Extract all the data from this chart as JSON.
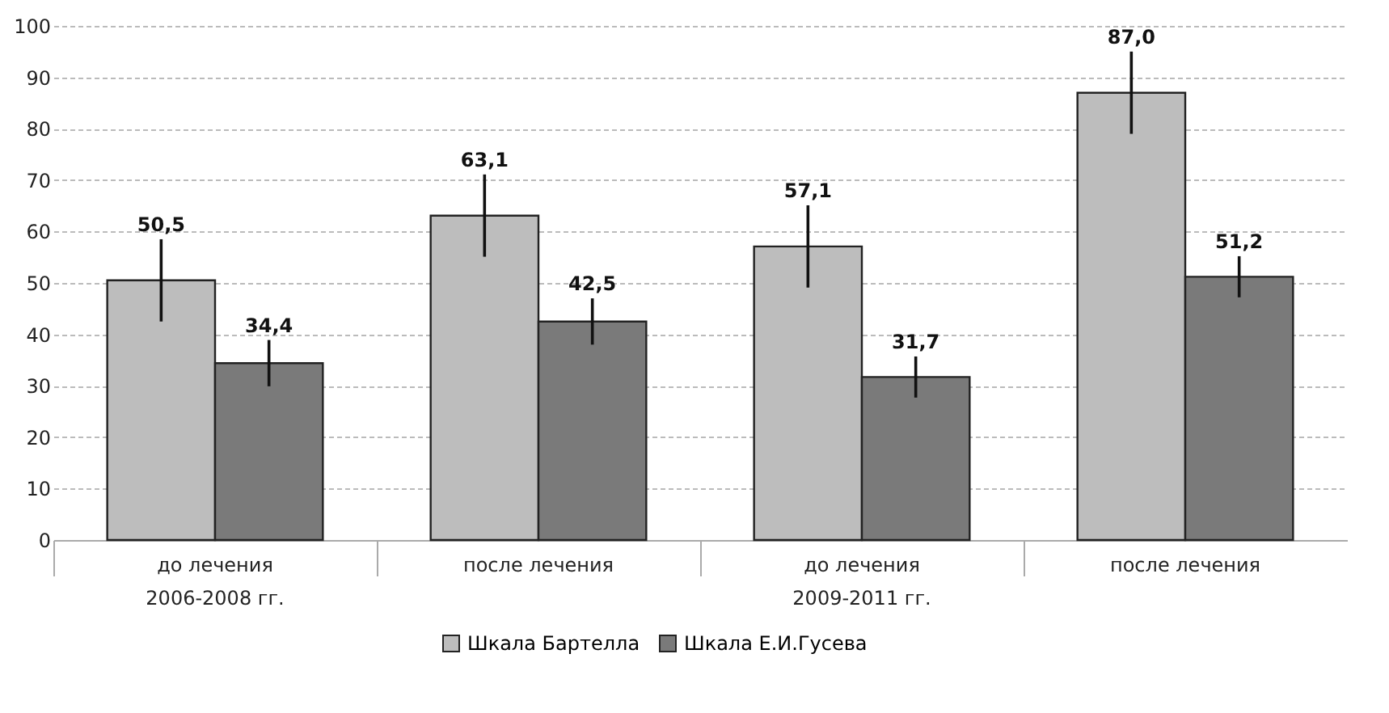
{
  "chart_data": {
    "type": "bar",
    "categories": [
      "до лечения",
      "после лечения",
      "до лечения",
      "после лечения"
    ],
    "series": [
      {
        "name": "Шкала Бартелла",
        "color": "#bdbdbd",
        "values": [
          50.5,
          63.1,
          57.1,
          87.0
        ],
        "errors": [
          8,
          8,
          8,
          8
        ],
        "value_labels": [
          "50,5",
          "63,1",
          "57,1",
          "87,0"
        ]
      },
      {
        "name": "Шкала Е.И.Гусева",
        "color": "#7a7a7a",
        "values": [
          34.4,
          42.5,
          31.7,
          51.2
        ],
        "errors": [
          4.5,
          4.5,
          4,
          4
        ],
        "value_labels": [
          "34,4",
          "42,5",
          "31,7",
          "51,2"
        ]
      }
    ],
    "annotations": [
      "2006-2008 гг.",
      "2009-2011 гг."
    ],
    "ylim": [
      0,
      100
    ],
    "yticks": [
      0,
      10,
      20,
      30,
      40,
      50,
      60,
      70,
      80,
      90,
      100
    ],
    "grid": "y",
    "legend": "bottom"
  }
}
